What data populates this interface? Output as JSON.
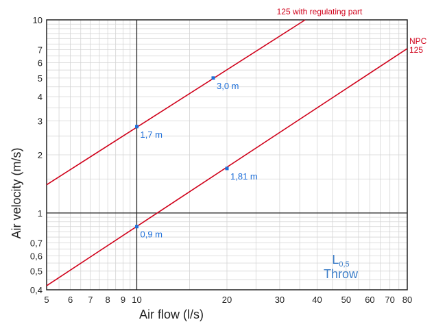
{
  "chart_data": {
    "type": "line",
    "title": "",
    "xlabel": "Air flow (l/s)",
    "ylabel": "Air velocity (m/s)",
    "x_scale": "log",
    "y_scale": "log",
    "xlim": [
      5,
      80
    ],
    "ylim": [
      0.4,
      10
    ],
    "grid": true,
    "x_tick_labels": [
      {
        "value": 5,
        "label": "5"
      },
      {
        "value": 6,
        "label": "6"
      },
      {
        "value": 7,
        "label": "7"
      },
      {
        "value": 8,
        "label": "8"
      },
      {
        "value": 9,
        "label": "9"
      },
      {
        "value": 10,
        "label": "10"
      },
      {
        "value": 20,
        "label": "20"
      },
      {
        "value": 30,
        "label": "30"
      },
      {
        "value": 40,
        "label": "40"
      },
      {
        "value": 50,
        "label": "50"
      },
      {
        "value": 60,
        "label": "60"
      },
      {
        "value": 70,
        "label": "70"
      },
      {
        "value": 80,
        "label": "80"
      }
    ],
    "y_tick_labels": [
      {
        "value": 0.4,
        "label": "0,4"
      },
      {
        "value": 0.5,
        "label": "0,5"
      },
      {
        "value": 0.6,
        "label": "0,6"
      },
      {
        "value": 0.7,
        "label": "0,7"
      },
      {
        "value": 1,
        "label": "1"
      },
      {
        "value": 2,
        "label": "2"
      },
      {
        "value": 3,
        "label": "3"
      },
      {
        "value": 4,
        "label": "4"
      },
      {
        "value": 5,
        "label": "5"
      },
      {
        "value": 6,
        "label": "6"
      },
      {
        "value": 7,
        "label": "7"
      },
      {
        "value": 10,
        "label": "10"
      }
    ],
    "series": [
      {
        "name_lines": [
          "125 with regulating part"
        ],
        "color": "#d0021b",
        "x": [
          5,
          36.5
        ],
        "y": [
          1.4,
          10
        ],
        "points": [
          {
            "x": 10,
            "y": 2.8,
            "label": "1,7 m"
          },
          {
            "x": 18,
            "y": 5.0,
            "label": "3,0 m"
          }
        ]
      },
      {
        "name_lines": [
          "NPC",
          "125"
        ],
        "color": "#d0021b",
        "x": [
          5,
          80
        ],
        "y": [
          0.42,
          7.1
        ],
        "points": [
          {
            "x": 10,
            "y": 0.85,
            "label": "0,9 m"
          },
          {
            "x": 20,
            "y": 1.7,
            "label": "1,81 m"
          }
        ]
      }
    ],
    "point_color": "#1e6fd9",
    "annotation": {
      "main": "L",
      "subscript": "0,5",
      "second_line": "Throw",
      "color": "#3d7ec8"
    }
  }
}
